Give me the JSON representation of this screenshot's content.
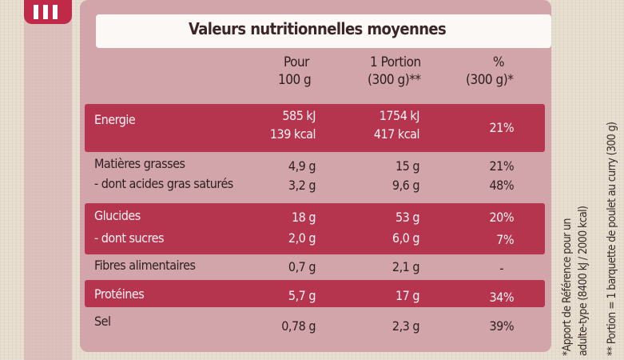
{
  "table": {
    "title": "Valeurs nutritionnelles moyennes",
    "headers": {
      "pour_line1": "Pour",
      "pour_line2": "100 g",
      "portion_line1": "1 Portion",
      "portion_line2": "(300 g)**",
      "pct_line1": "%",
      "pct_line2": "(300 g)*"
    },
    "rows": [
      {
        "label": "Energie",
        "pour": "585 kJ",
        "portion": "1754 kJ",
        "pct": ""
      },
      {
        "label": "",
        "pour": "139 kcal",
        "portion": "417 kcal",
        "pct": "21%"
      },
      {
        "label": "Matières grasses",
        "pour": "4,9 g",
        "portion": "15 g",
        "pct": "21%"
      },
      {
        "label": "- dont acides gras saturés",
        "pour": "3,2 g",
        "portion": "9,6 g",
        "pct": "48%"
      },
      {
        "label": "Glucides",
        "pour": "18 g",
        "portion": "53 g",
        "pct": "20%"
      },
      {
        "label": "- dont sucres",
        "pour": "2,0 g",
        "portion": "6,0 g",
        "pct": "7%"
      },
      {
        "label": "Fibres alimentaires",
        "pour": "0,7 g",
        "portion": "2,1 g",
        "pct": "-"
      },
      {
        "label": "Protéines",
        "pour": "5,7 g",
        "portion": "17 g",
        "pct": "34%"
      },
      {
        "label": "Sel",
        "pour": "0,78 g",
        "portion": "2,3 g",
        "pct": "39%"
      }
    ]
  },
  "footnotes": {
    "line1": "*Apport de Référence pour un",
    "line2": "adulte-type (8400 kJ / 2000 kcal)",
    "line3": "** Portion = 1 barquette de poulet au curry (300 g)"
  },
  "colors": {
    "panel": "#d1a5aa",
    "band": "#b5354e",
    "title_box": "#fbf8f5",
    "logo": "#c02a48"
  }
}
